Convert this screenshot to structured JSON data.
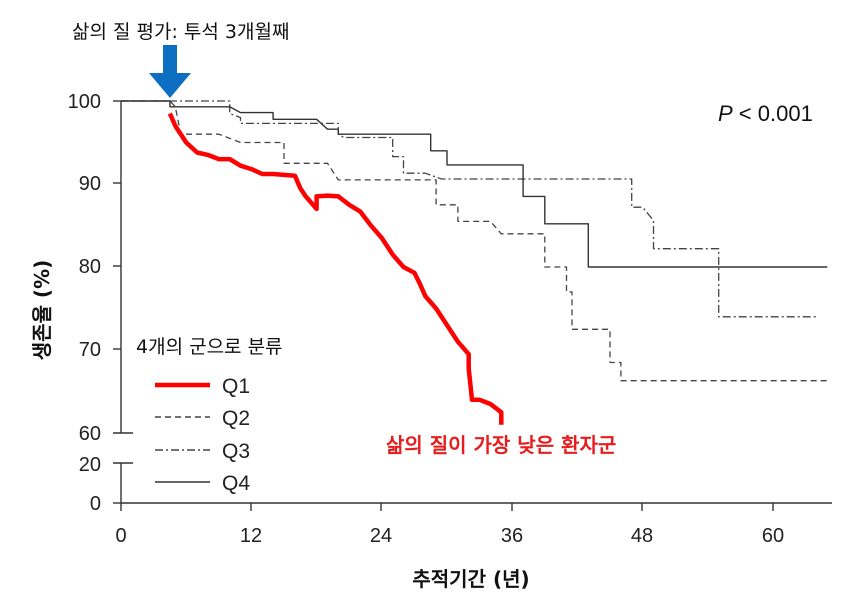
{
  "chart_data": {
    "type": "line",
    "title": "",
    "xlabel": "추적기간 (년)",
    "ylabel": "생존율 (%)",
    "xlim": [
      0,
      65
    ],
    "ylim": [
      0,
      100
    ],
    "y_axis_break": [
      20,
      60
    ],
    "x_ticks": [
      "0",
      "12",
      "24",
      "36",
      "48",
      "60"
    ],
    "y_ticks": [
      "100",
      "90",
      "80",
      "70",
      "60",
      "20",
      "0"
    ],
    "annotations": {
      "assessment": "삶의 질 평가: 투석 3개월째",
      "p_value_italic": "P",
      "p_value_rest": " < 0.001",
      "grouping": "4개의 군으로 분류",
      "lowest_group": "삶의 질이 가장 낮은 환자군"
    },
    "legend_placement": "bottom-left",
    "series": [
      {
        "name": "Q1",
        "style": "solid-thick",
        "color": "#ff0000",
        "points": [
          [
            4.5,
            98.5
          ],
          [
            5,
            97
          ],
          [
            6,
            95
          ],
          [
            7,
            93.8
          ],
          [
            8,
            93.5
          ],
          [
            9,
            93
          ],
          [
            10,
            93
          ],
          [
            11,
            92.2
          ],
          [
            12,
            91.8
          ],
          [
            13,
            91.2
          ],
          [
            14,
            91.2
          ],
          [
            16,
            91
          ],
          [
            16.5,
            89.5
          ],
          [
            17,
            88.5
          ],
          [
            18,
            87
          ],
          [
            18,
            88.5
          ],
          [
            19,
            88.6
          ],
          [
            20,
            88.5
          ],
          [
            21,
            87.5
          ],
          [
            22,
            86.7
          ],
          [
            23,
            85
          ],
          [
            24,
            83.5
          ],
          [
            25,
            81.5
          ],
          [
            26,
            80
          ],
          [
            27,
            79.3
          ],
          [
            27.5,
            78
          ],
          [
            28,
            76.5
          ],
          [
            29,
            75
          ],
          [
            30,
            73
          ],
          [
            31,
            71
          ],
          [
            32,
            69.5
          ],
          [
            32,
            67.8
          ],
          [
            32.3,
            64
          ],
          [
            33,
            64
          ],
          [
            34,
            63.5
          ],
          [
            35,
            62.5
          ],
          [
            35,
            61
          ]
        ]
      },
      {
        "name": "Q2",
        "style": "dashed",
        "color": "#444444",
        "points": [
          [
            0,
            100
          ],
          [
            4.5,
            100
          ],
          [
            5,
            99.3
          ],
          [
            5.5,
            96
          ],
          [
            9,
            96
          ],
          [
            11,
            95
          ],
          [
            15,
            95
          ],
          [
            15,
            92.5
          ],
          [
            19,
            92.5
          ],
          [
            20,
            90.5
          ],
          [
            29,
            90.5
          ],
          [
            29,
            87.5
          ],
          [
            31,
            87.5
          ],
          [
            31,
            85.5
          ],
          [
            34,
            85.5
          ],
          [
            35,
            84
          ],
          [
            39,
            84
          ],
          [
            39,
            80
          ],
          [
            41,
            80
          ],
          [
            41,
            77
          ],
          [
            41.5,
            77
          ],
          [
            41.5,
            72.5
          ],
          [
            45,
            72.5
          ],
          [
            45,
            68.5
          ],
          [
            46,
            68.5
          ],
          [
            46,
            66.3
          ],
          [
            65,
            66.3
          ]
        ]
      },
      {
        "name": "Q3",
        "style": "dash-dot",
        "color": "#444444",
        "points": [
          [
            0,
            100
          ],
          [
            4.5,
            100
          ],
          [
            5,
            100
          ],
          [
            10,
            100
          ],
          [
            10,
            98.5
          ],
          [
            11,
            98
          ],
          [
            11,
            97.3
          ],
          [
            20,
            97.3
          ],
          [
            20,
            96
          ],
          [
            20.5,
            95.6
          ],
          [
            25,
            95.6
          ],
          [
            25,
            93.3
          ],
          [
            26,
            93.3
          ],
          [
            26,
            91.3
          ],
          [
            28,
            91.3
          ],
          [
            29.5,
            90.6
          ],
          [
            47,
            90.6
          ],
          [
            47,
            87.2
          ],
          [
            48,
            87.2
          ],
          [
            49,
            85.6
          ],
          [
            49,
            82.2
          ],
          [
            55,
            82.2
          ],
          [
            55,
            74
          ],
          [
            64,
            74
          ]
        ]
      },
      {
        "name": "Q4",
        "style": "solid",
        "color": "#333333",
        "points": [
          [
            0,
            100
          ],
          [
            4.5,
            100
          ],
          [
            4.5,
            99.3
          ],
          [
            10,
            99.3
          ],
          [
            11,
            98.6
          ],
          [
            14,
            98.6
          ],
          [
            14,
            97.8
          ],
          [
            18,
            97.8
          ],
          [
            19,
            96.6
          ],
          [
            20,
            96.6
          ],
          [
            20,
            96
          ],
          [
            28.5,
            96
          ],
          [
            28.5,
            94
          ],
          [
            30,
            94
          ],
          [
            30,
            92.3
          ],
          [
            37,
            92.3
          ],
          [
            37,
            88.5
          ],
          [
            39,
            88.5
          ],
          [
            39,
            85.2
          ],
          [
            43,
            85.2
          ],
          [
            43,
            80
          ],
          [
            65,
            80
          ]
        ]
      }
    ]
  }
}
